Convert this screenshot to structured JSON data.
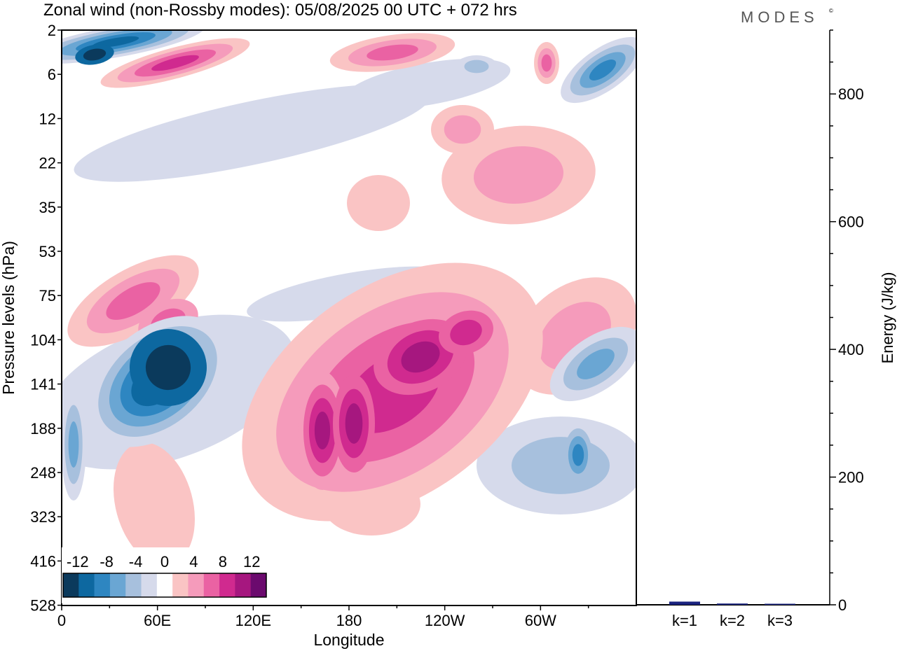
{
  "chart_data": [
    {
      "type": "heatmap",
      "title": "Zonal wind (non-Rossby modes):  05/08/2025  00 UTC  + 072 hrs",
      "xlabel": "Longitude",
      "ylabel": "Pressure levels (hPa)",
      "x_ticks": [
        "0",
        "60E",
        "120E",
        "180",
        "120W",
        "60W"
      ],
      "y_ticks": [
        "2",
        "6",
        "12",
        "22",
        "35",
        "53",
        "75",
        "104",
        "141",
        "188",
        "248",
        "323",
        "416",
        "528"
      ],
      "colorbar": {
        "labels": [
          "-12",
          "-8",
          "-4",
          "0",
          "4",
          "8",
          "12"
        ],
        "levels": [
          -14,
          -12,
          -10,
          -8,
          -6,
          -4,
          -2,
          2,
          4,
          6,
          8,
          10,
          12,
          14
        ],
        "colors": [
          "#0b3a5c",
          "#0d68a0",
          "#2e86c1",
          "#6aa6d3",
          "#a7c0dd",
          "#d6daeb",
          "#ffffff",
          "#fac4c4",
          "#f59bbb",
          "#ea62a3",
          "#d02a8f",
          "#a6177f",
          "#6b0a6e"
        ]
      },
      "features": [
        {
          "label": "negative core near 141 hPa, 60E",
          "lon": 55,
          "level": "141",
          "value": -14
        },
        {
          "label": "positive band near 141 hPa, 160E-120W",
          "lon": 200,
          "level": "141",
          "value": 10
        },
        {
          "label": "negative jet near 6 hPa, 20E",
          "lon": 20,
          "level": "6",
          "value": -12
        }
      ]
    },
    {
      "type": "bar",
      "ylabel": "Energy (J/kg)",
      "categories": [
        "k=1",
        "k=2",
        "k=3"
      ],
      "values": [
        5,
        2,
        1
      ],
      "ylim": [
        0,
        900
      ],
      "y_ticks": [
        "0",
        "200",
        "400",
        "600",
        "800"
      ],
      "bar_color": "#1a237e"
    }
  ],
  "brand": {
    "logo": "MODES",
    "mark": "©"
  }
}
